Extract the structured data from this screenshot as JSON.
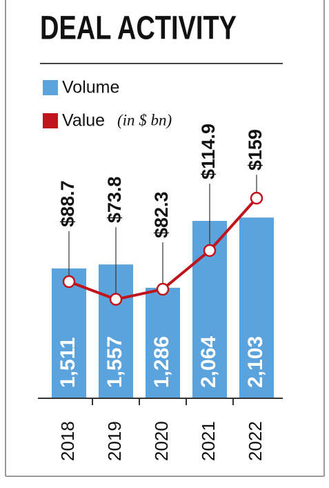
{
  "chart_data": {
    "type": "bar",
    "title": "DEAL ACTIVITY",
    "categories": [
      "2018",
      "2019",
      "2020",
      "2021",
      "2022"
    ],
    "unit_note": "(in $ bn)",
    "series": [
      {
        "name": "Volume",
        "type": "bar",
        "color": "#5ba3dc",
        "values": [
          1511,
          1557,
          1286,
          2064,
          2103
        ],
        "value_labels": [
          "1,511",
          "1,557",
          "1,286",
          "2,064",
          "2,103"
        ]
      },
      {
        "name": "Value",
        "type": "line",
        "color": "#c0141c",
        "values": [
          88.7,
          73.8,
          82.3,
          114.9,
          159
        ],
        "value_labels": [
          "$88.7",
          "$73.8",
          "$82.3",
          "$114.9",
          "$159"
        ]
      }
    ]
  }
}
